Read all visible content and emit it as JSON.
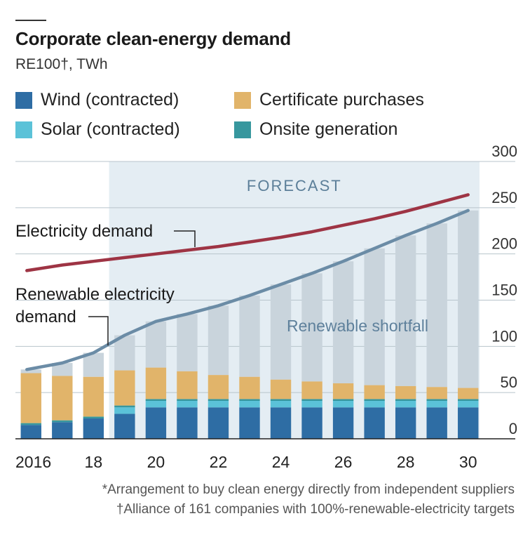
{
  "title": "Corporate clean-energy demand",
  "subtitle": "RE100†, TWh",
  "footnotes": [
    "*Arrangement to buy clean energy directly from independent suppliers",
    "†Alliance of 161 companies with 100%-renewable-electricity targets"
  ],
  "colors": {
    "wind": "#2e6da4",
    "solar": "#5bc2d8",
    "onsite": "#37979e",
    "certificates": "#e1b46a",
    "shortfall": "#c9d4dc",
    "forecast_bg": "#e4edf3",
    "electricity_line": "#9e3444",
    "renewable_line": "#6b8ca6"
  },
  "legend": [
    {
      "key": "wind",
      "label": "Wind (contracted)",
      "color": "#2e6da4"
    },
    {
      "key": "certificates",
      "label": "Certificate purchases",
      "color": "#e1b46a"
    },
    {
      "key": "solar",
      "label": "Solar (contracted)",
      "color": "#5bc2d8"
    },
    {
      "key": "onsite",
      "label": "Onsite generation",
      "color": "#37979e"
    }
  ],
  "chart_data": {
    "type": "bar",
    "stacked": true,
    "x": [
      2016,
      2017,
      2018,
      2019,
      2020,
      2021,
      2022,
      2023,
      2024,
      2025,
      2026,
      2027,
      2028,
      2029,
      2030
    ],
    "x_tick_labels": [
      "2016",
      "18",
      "20",
      "22",
      "24",
      "26",
      "28",
      "30"
    ],
    "x_tick_values": [
      2016,
      2018,
      2020,
      2022,
      2024,
      2026,
      2028,
      2030
    ],
    "ylim": [
      0,
      300
    ],
    "y_ticks": [
      0,
      50,
      100,
      150,
      200,
      250,
      300
    ],
    "y_axis_side": "right",
    "grid": true,
    "series": [
      {
        "key": "wind",
        "name": "Wind (contracted)",
        "values": [
          15,
          18,
          22,
          27,
          34,
          34,
          34,
          34,
          34,
          34,
          34,
          34,
          34,
          34,
          34
        ]
      },
      {
        "key": "solar",
        "name": "Solar (contracted)",
        "values": [
          0,
          0,
          0,
          7,
          7,
          7,
          7,
          7,
          7,
          7,
          7,
          7,
          7,
          7,
          7
        ]
      },
      {
        "key": "onsite",
        "name": "Onsite generation",
        "values": [
          2,
          2,
          2,
          2,
          2,
          2,
          2,
          2,
          2,
          2,
          2,
          2,
          2,
          2,
          2
        ]
      },
      {
        "key": "certificates",
        "name": "Certificate purchases",
        "values": [
          54,
          48,
          43,
          38,
          34,
          30,
          26,
          24,
          21,
          19,
          17,
          15,
          14,
          13,
          12
        ]
      }
    ],
    "lines": [
      {
        "key": "electricity",
        "label": "Electricity demand",
        "values": [
          182,
          188,
          192,
          196,
          200,
          204,
          208,
          213,
          218,
          224,
          231,
          238,
          246,
          255,
          264
        ]
      },
      {
        "key": "renewable",
        "label": "Renewable electricity demand",
        "values": [
          75,
          82,
          93,
          112,
          127,
          135,
          144,
          155,
          167,
          179,
          192,
          206,
          220,
          233,
          247
        ]
      }
    ],
    "forecast": {
      "label": "FORECAST",
      "start": 2019,
      "end": 2030
    },
    "annotations": {
      "shortfall": "Renewable shortfall",
      "electricity": "Electricity demand",
      "renewable_line1": "Renewable electricity",
      "renewable_line2": "demand"
    }
  }
}
